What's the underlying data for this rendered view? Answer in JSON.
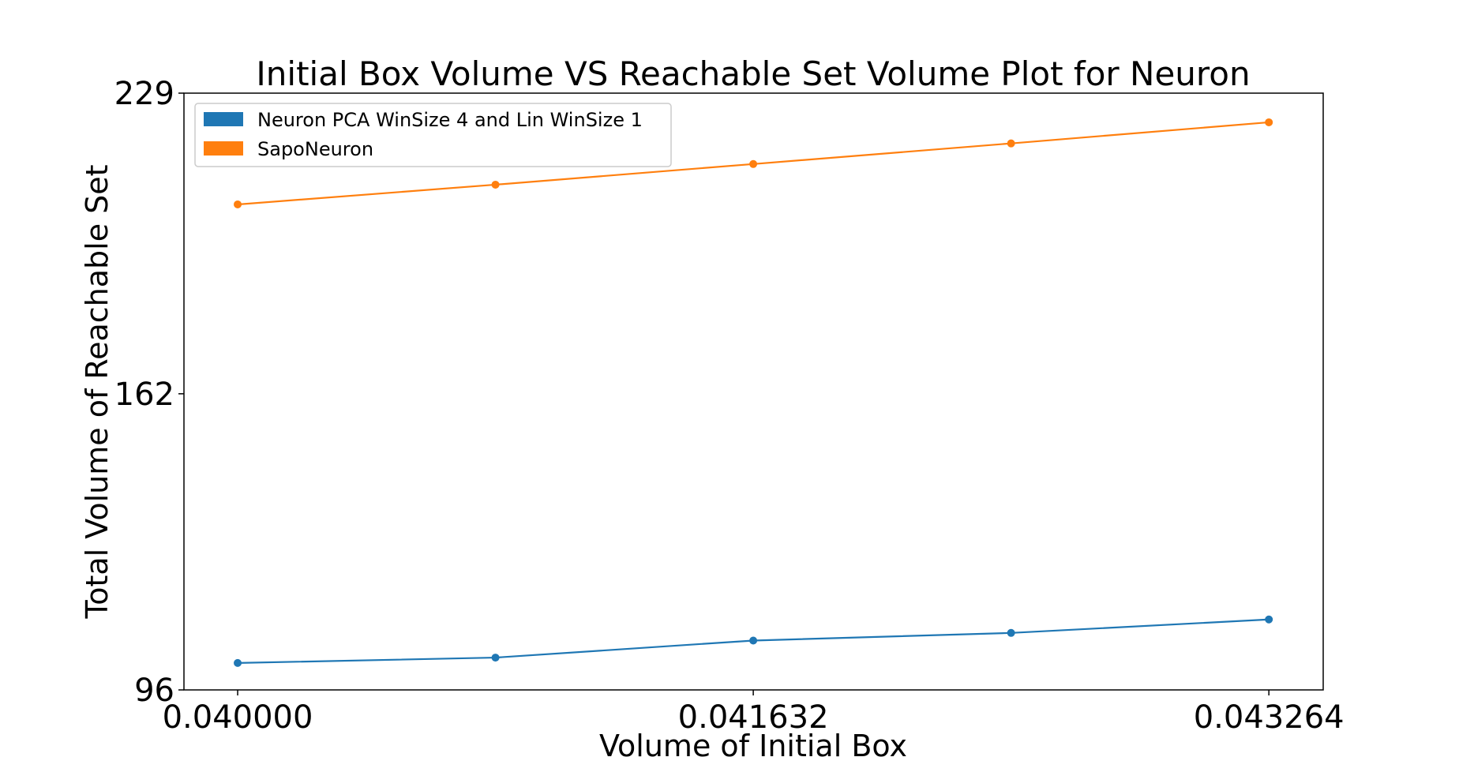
{
  "chart_data": {
    "type": "line",
    "title": "Initial Box Volume VS Reachable Set Volume Plot for Neuron",
    "xlabel": "Volume of Initial Box",
    "ylabel": "Total Volume of Reachable Set",
    "x": [
      0.04,
      0.040816,
      0.041632,
      0.042448,
      0.043264
    ],
    "x_tick_values": [
      0.04,
      0.041632,
      0.043264
    ],
    "x_tick_labels": [
      "0.040000",
      "0.041632",
      "0.043264"
    ],
    "y_tick_values": [
      96,
      162,
      229
    ],
    "y_tick_labels": [
      "96",
      "162",
      "229"
    ],
    "xlim": [
      0.03983,
      0.043436
    ],
    "ylim": [
      96,
      229
    ],
    "grid": false,
    "legend_position": "top-left",
    "series": [
      {
        "name": "Neuron PCA WinSize 4 and Lin WinSize 1",
        "color": "#1f77b4",
        "values": [
          102,
          103.2,
          107,
          108.7,
          111.7
        ]
      },
      {
        "name": "SapoNeuron",
        "color": "#ff7f0e",
        "values": [
          204.2,
          208.6,
          213.2,
          217.8,
          222.5
        ]
      }
    ]
  }
}
